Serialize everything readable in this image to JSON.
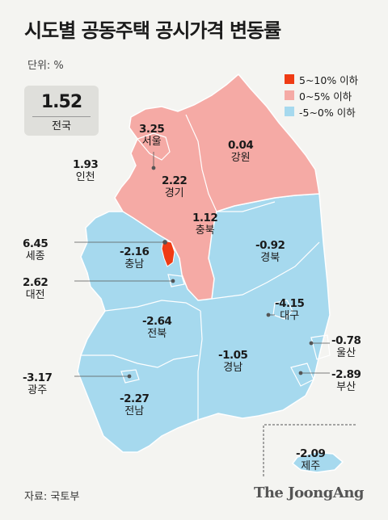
{
  "title": "시도별 공동주택 공시가격 변동률",
  "unit": "단위: %",
  "national": {
    "value": "1.52",
    "label": "전국"
  },
  "legend": [
    {
      "label": "5~10% 이하",
      "color": "#ef3b14"
    },
    {
      "label": "0~5% 이하",
      "color": "#f5aaa5"
    },
    {
      "label": "-5~0% 이하",
      "color": "#a6d9ee"
    }
  ],
  "colors": {
    "increase_high": "#ef3b14",
    "increase": "#f5aaa5",
    "decrease": "#a6d9ee",
    "border": "#ffffff",
    "leader": "#555555"
  },
  "regions": [
    {
      "name": "서울",
      "value": "3.25",
      "category": "0~5% 이하"
    },
    {
      "name": "강원",
      "value": "0.04",
      "category": "0~5% 이하"
    },
    {
      "name": "인천",
      "value": "1.93",
      "category": "0~5% 이하"
    },
    {
      "name": "경기",
      "value": "2.22",
      "category": "0~5% 이하"
    },
    {
      "name": "충북",
      "value": "1.12",
      "category": "0~5% 이하"
    },
    {
      "name": "세종",
      "value": "6.45",
      "category": "5~10% 이하"
    },
    {
      "name": "충남",
      "value": "-2.16",
      "category": "-5~0% 이하"
    },
    {
      "name": "경북",
      "value": "-0.92",
      "category": "-5~0% 이하"
    },
    {
      "name": "대전",
      "value": "2.62",
      "category": "0~5% 이하"
    },
    {
      "name": "대구",
      "value": "-4.15",
      "category": "-5~0% 이하"
    },
    {
      "name": "전북",
      "value": "-2.64",
      "category": "-5~0% 이하"
    },
    {
      "name": "울산",
      "value": "-0.78",
      "category": "-5~0% 이하"
    },
    {
      "name": "경남",
      "value": "-1.05",
      "category": "-5~0% 이하"
    },
    {
      "name": "부산",
      "value": "-2.89",
      "category": "-5~0% 이하"
    },
    {
      "name": "광주",
      "value": "-3.17",
      "category": "-5~0% 이하"
    },
    {
      "name": "전남",
      "value": "-2.27",
      "category": "-5~0% 이하"
    },
    {
      "name": "제주",
      "value": "-2.09",
      "category": "-5~0% 이하"
    }
  ],
  "source": "자료: 국토부",
  "brand": "The JoongAng"
}
